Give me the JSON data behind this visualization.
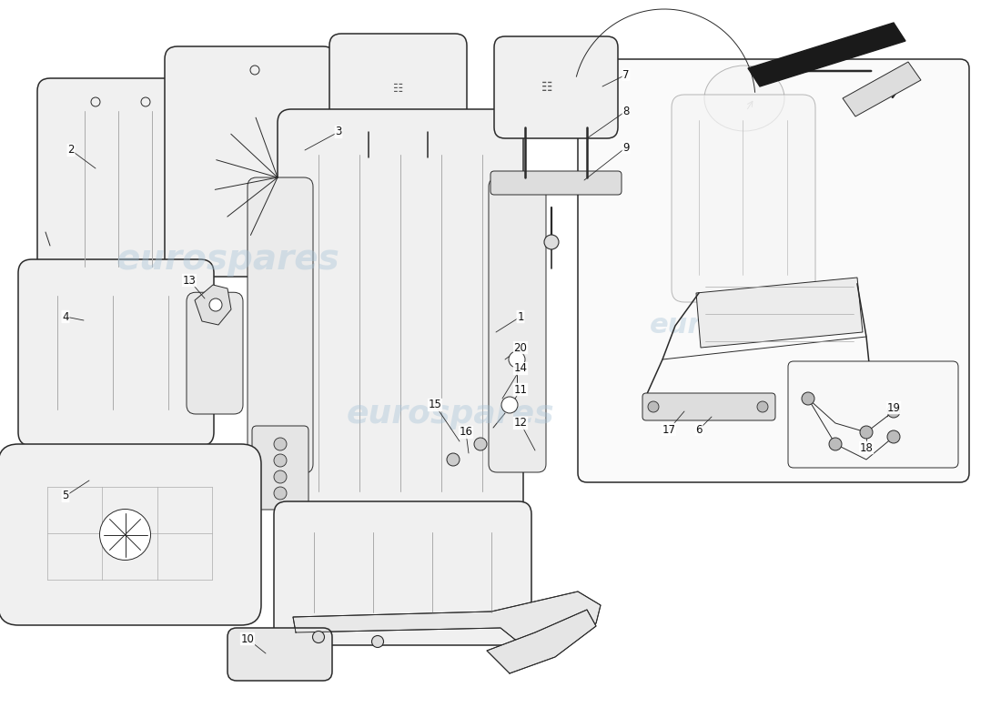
{
  "bg": "#ffffff",
  "lc": "#2a2a2a",
  "lg": "#aaaaaa",
  "sf": "#f0f0f0",
  "wm_color": "#a8c4d8",
  "wm_alpha": 0.4,
  "watermark": "eurospares"
}
